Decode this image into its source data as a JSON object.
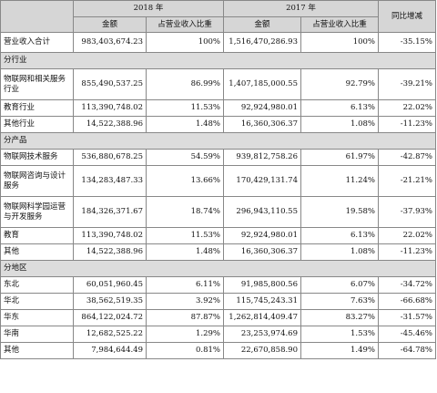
{
  "header": {
    "year_a": "2018 年",
    "year_b": "2017 年",
    "yoy": "同比增减",
    "amount": "金额",
    "ratio": "占营业收入比重"
  },
  "total": {
    "label": "营业收入合计",
    "a": "983,403,674.23",
    "ar": "100%",
    "b": "1,516,470,286.93",
    "br": "100%",
    "yoy": "-35.15%"
  },
  "sections": [
    {
      "title": "分行业",
      "rows": [
        {
          "label": "物联网和相关服务行业",
          "a": "855,490,537.25",
          "ar": "86.99%",
          "b": "1,407,185,000.55",
          "br": "92.79%",
          "yoy": "-39.21%"
        },
        {
          "label": "教育行业",
          "a": "113,390,748.02",
          "ar": "11.53%",
          "b": "92,924,980.01",
          "br": "6.13%",
          "yoy": "22.02%"
        },
        {
          "label": "其他行业",
          "a": "14,522,388.96",
          "ar": "1.48%",
          "b": "16,360,306.37",
          "br": "1.08%",
          "yoy": "-11.23%"
        }
      ]
    },
    {
      "title": "分产品",
      "rows": [
        {
          "label": "物联网技术服务",
          "a": "536,880,678.25",
          "ar": "54.59%",
          "b": "939,812,758.26",
          "br": "61.97%",
          "yoy": "-42.87%"
        },
        {
          "label": "物联网咨询与设计服务",
          "a": "134,283,487.33",
          "ar": "13.66%",
          "b": "170,429,131.74",
          "br": "11.24%",
          "yoy": "-21.21%"
        },
        {
          "label": "物联网科学园运营与开发服务",
          "a": "184,326,371.67",
          "ar": "18.74%",
          "b": "296,943,110.55",
          "br": "19.58%",
          "yoy": "-37.93%"
        },
        {
          "label": "教育",
          "a": "113,390,748.02",
          "ar": "11.53%",
          "b": "92,924,980.01",
          "br": "6.13%",
          "yoy": "22.02%"
        },
        {
          "label": "其他",
          "a": "14,522,388.96",
          "ar": "1.48%",
          "b": "16,360,306.37",
          "br": "1.08%",
          "yoy": "-11.23%"
        }
      ]
    },
    {
      "title": "分地区",
      "rows": [
        {
          "label": "东北",
          "a": "60,051,960.45",
          "ar": "6.11%",
          "b": "91,985,800.56",
          "br": "6.07%",
          "yoy": "-34.72%"
        },
        {
          "label": "华北",
          "a": "38,562,519.35",
          "ar": "3.92%",
          "b": "115,745,243.31",
          "br": "7.63%",
          "yoy": "-66.68%"
        },
        {
          "label": "华东",
          "a": "864,122,024.72",
          "ar": "87.87%",
          "b": "1,262,814,409.47",
          "br": "83.27%",
          "yoy": "-31.57%"
        },
        {
          "label": "华南",
          "a": "12,682,525.22",
          "ar": "1.29%",
          "b": "23,253,974.69",
          "br": "1.53%",
          "yoy": "-45.46%"
        },
        {
          "label": "其他",
          "a": "7,984,644.49",
          "ar": "0.81%",
          "b": "22,670,858.90",
          "br": "1.49%",
          "yoy": "-64.78%"
        }
      ]
    }
  ]
}
